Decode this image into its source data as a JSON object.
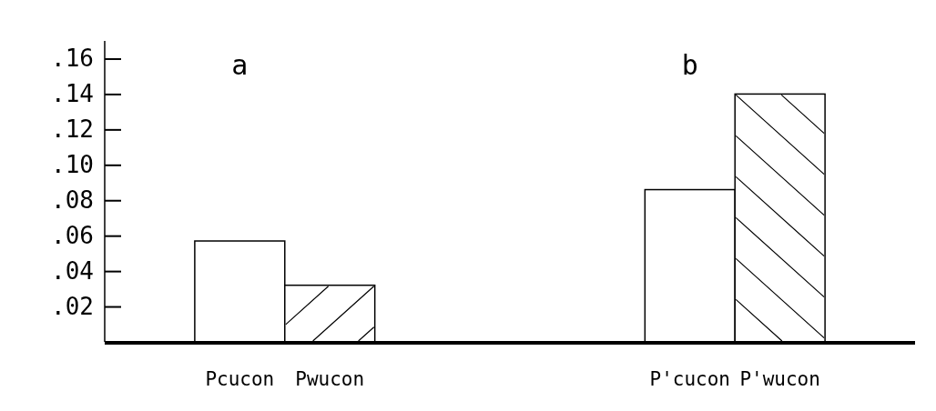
{
  "chart_data": {
    "type": "bar",
    "categories": [
      null,
      "Pcucon",
      "Pwucon",
      null,
      null,
      null,
      "P'cucon",
      "P'wucon",
      null
    ],
    "values": [
      null,
      0.057,
      0.032,
      null,
      null,
      null,
      0.086,
      0.14,
      null
    ],
    "colors": [
      null,
      "#ffffff",
      "#ffffff",
      null,
      null,
      null,
      "#ffffff",
      "#ffffff",
      null
    ],
    "ylim": [
      0,
      0.17
    ],
    "yticks": [
      {
        "value": 0.02,
        "label": ".02"
      },
      {
        "value": 0.04,
        "label": ".04"
      },
      {
        "value": 0.06,
        "label": ".06"
      },
      {
        "value": 0.08,
        "label": ".08"
      },
      {
        "value": 0.1,
        "label": ".10"
      },
      {
        "value": 0.12,
        "label": ".12"
      },
      {
        "value": 0.14,
        "label": ".14"
      },
      {
        "value": 0.16,
        "label": ".16"
      }
    ],
    "annotations": [
      "a",
      "b"
    ],
    "grid": false
  }
}
